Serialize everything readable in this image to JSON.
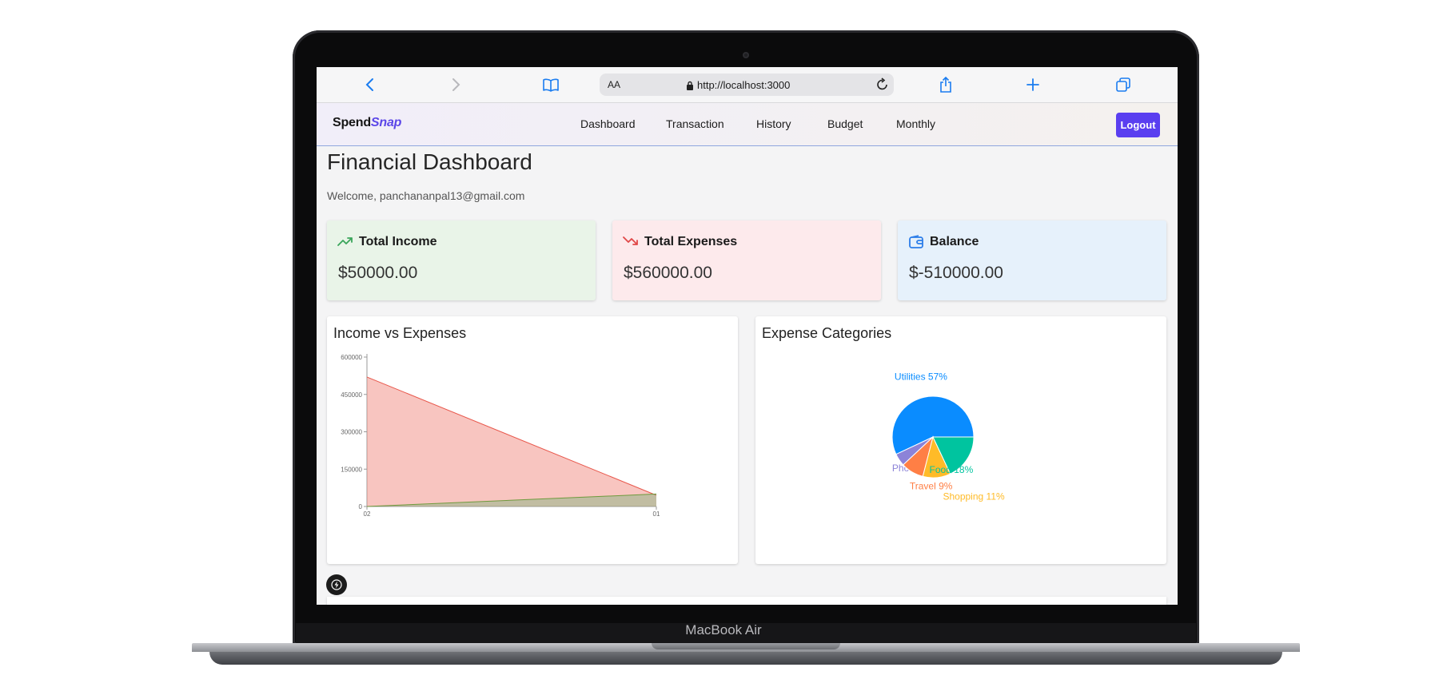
{
  "device": {
    "label": "MacBook Air"
  },
  "browser": {
    "text_size_label": "AA",
    "url": "http://localhost:3000"
  },
  "app": {
    "logo_part1": "Spend",
    "logo_part2": "Snap",
    "nav": [
      "Dashboard",
      "Transaction",
      "History",
      "Budget",
      "Monthly"
    ],
    "logout_label": "Logout"
  },
  "page": {
    "title": "Financial Dashboard",
    "welcome": "Welcome, panchananpal13@gmail.com"
  },
  "cards": [
    {
      "title": "Total Income",
      "value": "$50000.00",
      "icon": "trending-up-icon",
      "bg": "#e9f4e8",
      "icon_color": "#3aa55a"
    },
    {
      "title": "Total Expenses",
      "value": "$560000.00",
      "icon": "trending-down-icon",
      "bg": "#fdeaec",
      "icon_color": "#e04848"
    },
    {
      "title": "Balance",
      "value": "$-510000.00",
      "icon": "wallet-icon",
      "bg": "#e6f1fb",
      "icon_color": "#2b7de9"
    }
  ],
  "chart_data": [
    {
      "type": "area",
      "title": "Income vs Expenses",
      "x": [
        "02",
        "01"
      ],
      "series": [
        {
          "values": [
            520000,
            45000
          ],
          "color": "#f28b82"
        },
        {
          "values": [
            0,
            50000
          ],
          "color": "#7fb37f"
        }
      ],
      "yticks": [
        0,
        150000,
        300000,
        450000,
        600000
      ],
      "ylim": [
        0,
        600000
      ]
    },
    {
      "type": "pie",
      "title": "Expense Categories",
      "slices": [
        {
          "label": "Utilities 57%",
          "value": 57,
          "color": "#0a8cff"
        },
        {
          "label": "Phone 5%",
          "value": 5,
          "color": "#8c83d8"
        },
        {
          "label": "Travel 9%",
          "value": 9,
          "color": "#ff7f45"
        },
        {
          "label": "Shopping 11%",
          "value": 11,
          "color": "#ffbb28"
        },
        {
          "label": "Food 18%",
          "value": 18,
          "color": "#00c49f"
        }
      ]
    }
  ]
}
